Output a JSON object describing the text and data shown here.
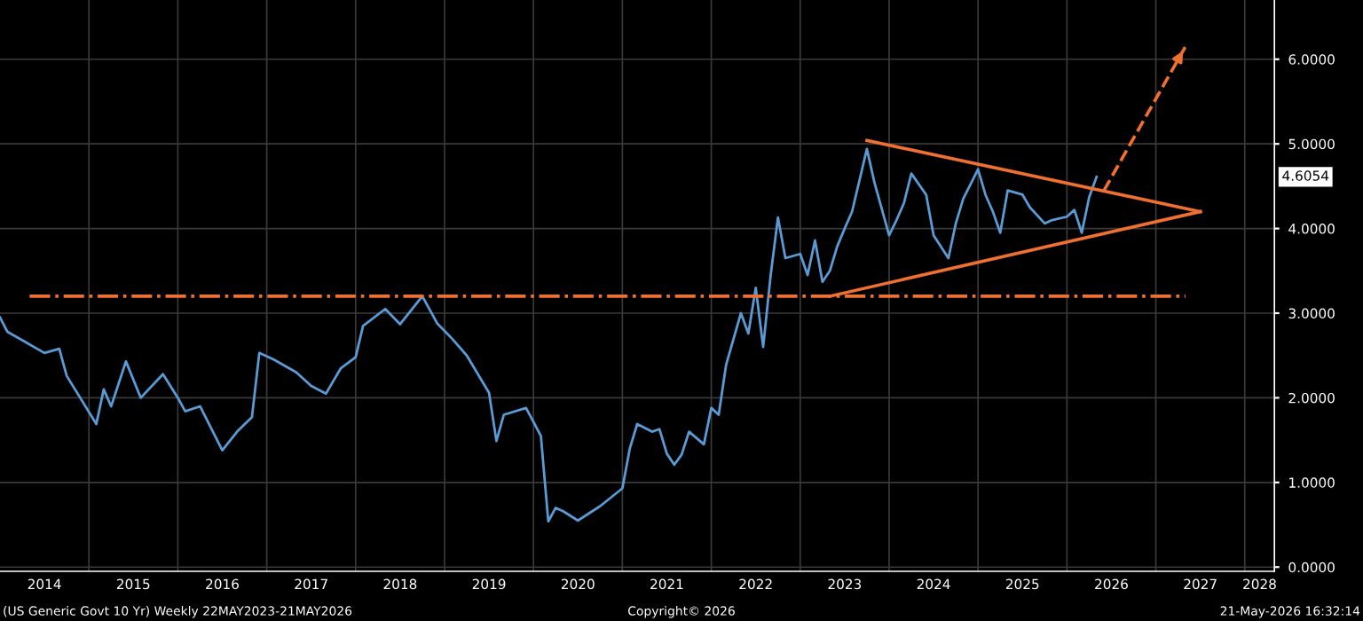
{
  "chart_data": {
    "type": "line",
    "x": [
      "2014-01",
      "2014-02",
      "2014-04",
      "2014-07",
      "2014-09",
      "2014-10",
      "2015-02",
      "2015-03",
      "2015-04",
      "2015-06",
      "2015-08",
      "2015-11",
      "2016-01",
      "2016-02",
      "2016-04",
      "2016-07",
      "2016-09",
      "2016-11",
      "2016-12",
      "2017-02",
      "2017-05",
      "2017-07",
      "2017-09",
      "2017-11",
      "2018-01",
      "2018-02",
      "2018-05",
      "2018-07",
      "2018-10",
      "2018-12",
      "2019-02",
      "2019-04",
      "2019-07",
      "2019-08",
      "2019-09",
      "2019-12",
      "2020-02",
      "2020-03",
      "2020-04",
      "2020-05",
      "2020-07",
      "2020-10",
      "2021-01",
      "2021-02",
      "2021-03",
      "2021-05",
      "2021-06",
      "2021-07",
      "2021-08",
      "2021-09",
      "2021-10",
      "2021-12",
      "2022-01",
      "2022-02",
      "2022-03",
      "2022-05",
      "2022-06",
      "2022-07",
      "2022-08",
      "2022-09",
      "2022-10",
      "2022-11",
      "2023-01",
      "2023-02",
      "2023-03",
      "2023-04",
      "2023-05",
      "2023-06",
      "2023-07",
      "2023-08",
      "2023-10",
      "2023-11",
      "2024-01",
      "2024-02",
      "2024-03",
      "2024-04",
      "2024-06",
      "2024-07",
      "2024-09",
      "2024-10",
      "2024-11",
      "2025-01",
      "2025-02",
      "2025-03",
      "2025-04",
      "2025-05",
      "2025-07",
      "2025-08",
      "2025-10",
      "2025-11",
      "2026-01",
      "2026-02",
      "2026-03",
      "2026-04",
      "2026-05"
    ],
    "series": [
      {
        "color": "#5b9bd5",
        "values": [
          2.95,
          2.78,
          2.68,
          2.53,
          2.58,
          2.26,
          1.69,
          2.1,
          1.9,
          2.43,
          2.0,
          2.28,
          2.0,
          1.84,
          1.9,
          1.38,
          1.6,
          1.77,
          2.53,
          2.45,
          2.3,
          2.14,
          2.05,
          2.35,
          2.48,
          2.85,
          3.05,
          2.87,
          3.2,
          2.88,
          2.7,
          2.5,
          2.06,
          1.49,
          1.8,
          1.88,
          1.55,
          0.54,
          0.7,
          0.66,
          0.55,
          0.72,
          0.93,
          1.4,
          1.69,
          1.6,
          1.63,
          1.34,
          1.21,
          1.33,
          1.6,
          1.45,
          1.88,
          1.8,
          2.39,
          3.0,
          2.76,
          3.3,
          2.6,
          3.44,
          4.13,
          3.65,
          3.7,
          3.45,
          3.86,
          3.37,
          3.5,
          3.79,
          4.0,
          4.2,
          4.94,
          4.55,
          3.92,
          4.1,
          4.3,
          4.65,
          4.4,
          3.92,
          3.65,
          4.06,
          4.35,
          4.7,
          4.4,
          4.2,
          3.95,
          4.45,
          4.4,
          4.25,
          4.06,
          4.1,
          4.14,
          4.22,
          3.95,
          4.37,
          4.61
        ]
      },
      {
        "color": "#f07030",
        "line_style": "dashdot",
        "x": [
          "2014-05",
          "2027-05"
        ],
        "values": [
          3.2,
          3.2
        ]
      },
      {
        "color": "#f07030",
        "line_style": "solid",
        "x": [
          "2023-10",
          "2027-07"
        ],
        "values": [
          5.04,
          4.2
        ]
      },
      {
        "color": "#f07030",
        "line_style": "solid",
        "x": [
          "2023-05",
          "2027-07"
        ],
        "values": [
          3.2,
          4.2
        ]
      },
      {
        "color": "#f07030",
        "line_style": "dashed",
        "x": [
          "2026-06",
          "2027-05"
        ],
        "values": [
          4.45,
          6.15
        ]
      }
    ],
    "xlim": [
      "2014-01",
      "2028-05"
    ],
    "xticks": [
      {
        "value": "2014-07",
        "label": "2014"
      },
      {
        "value": "2015-07",
        "label": "2015"
      },
      {
        "value": "2016-07",
        "label": "2016"
      },
      {
        "value": "2017-07",
        "label": "2017"
      },
      {
        "value": "2018-07",
        "label": "2018"
      },
      {
        "value": "2019-07",
        "label": "2019"
      },
      {
        "value": "2020-07",
        "label": "2020"
      },
      {
        "value": "2021-07",
        "label": "2021"
      },
      {
        "value": "2022-07",
        "label": "2022"
      },
      {
        "value": "2023-07",
        "label": "2023"
      },
      {
        "value": "2024-07",
        "label": "2024"
      },
      {
        "value": "2025-07",
        "label": "2025"
      },
      {
        "value": "2026-07",
        "label": "2026"
      },
      {
        "value": "2027-07",
        "label": "2027"
      },
      {
        "value": "2028-03",
        "label": "2028"
      }
    ],
    "ylim": [
      -0.05,
      6.7
    ],
    "yticks": [
      {
        "value": 0,
        "label": "0.0000"
      },
      {
        "value": 1,
        "label": "1.0000"
      },
      {
        "value": 2,
        "label": "2.0000"
      },
      {
        "value": 3,
        "label": "3.0000"
      },
      {
        "value": 4,
        "label": "4.0000"
      },
      {
        "value": 5,
        "label": "5.0000"
      },
      {
        "value": 6,
        "label": "6.0000"
      }
    ],
    "grid": true,
    "annotations": [
      "4.6054",
      "(US Generic Govt 10 Yr) Weekly 22MAY2023-21MAY2026",
      "Copyright© 2026",
      "21-May-2026 16:32:14"
    ]
  }
}
